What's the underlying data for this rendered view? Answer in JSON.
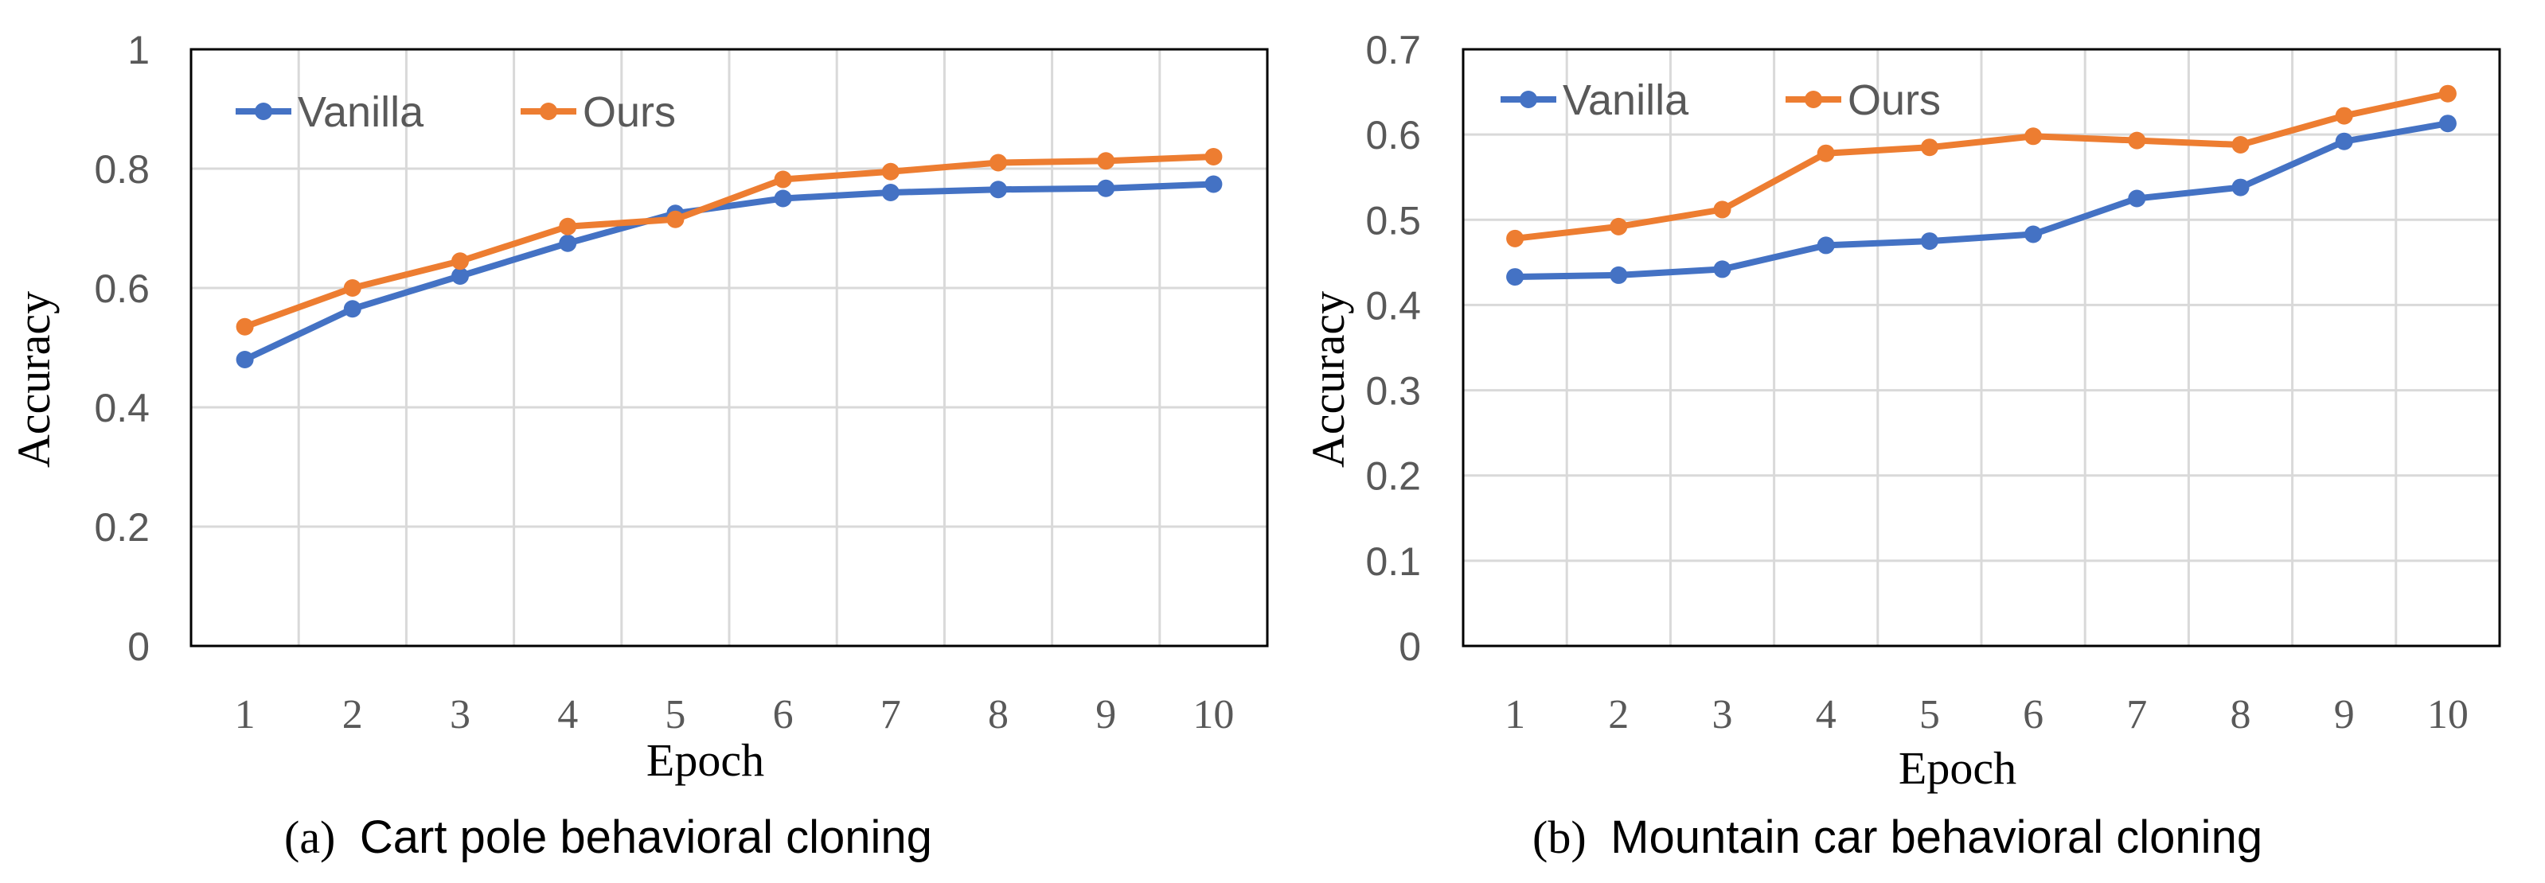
{
  "colors": {
    "vanilla": "#4472C4",
    "ours": "#ED7D31",
    "grid": "#D9D9D9",
    "frame": "#000000"
  },
  "chart_data": [
    {
      "type": "line",
      "panel_label": "(a)",
      "title": "Cart pole behavioral cloning",
      "xlabel": "Epoch",
      "ylabel": "Accuracy",
      "categories": [
        "1",
        "2",
        "3",
        "4",
        "5",
        "6",
        "7",
        "8",
        "9",
        "10"
      ],
      "ylim": [
        0,
        1
      ],
      "yticks": [
        "0",
        "0.2",
        "0.4",
        "0.6",
        "0.8",
        "1"
      ],
      "grid": true,
      "legend": "top-left",
      "series": [
        {
          "name": "Vanilla",
          "values": [
            0.48,
            0.565,
            0.62,
            0.675,
            0.725,
            0.75,
            0.76,
            0.765,
            0.767,
            0.774
          ]
        },
        {
          "name": "Ours",
          "values": [
            0.535,
            0.6,
            0.645,
            0.703,
            0.715,
            0.782,
            0.795,
            0.81,
            0.813,
            0.82
          ]
        }
      ]
    },
    {
      "type": "line",
      "panel_label": "(b)",
      "title": "Mountain car behavioral cloning",
      "xlabel": "Epoch",
      "ylabel": "Accuracy",
      "categories": [
        "1",
        "2",
        "3",
        "4",
        "5",
        "6",
        "7",
        "8",
        "9",
        "10"
      ],
      "ylim": [
        0,
        0.7
      ],
      "yticks": [
        "0",
        "0.1",
        "0.2",
        "0.3",
        "0.4",
        "0.5",
        "0.6",
        "0.7"
      ],
      "grid": true,
      "legend": "top-left",
      "series": [
        {
          "name": "Vanilla",
          "values": [
            0.433,
            0.435,
            0.442,
            0.47,
            0.475,
            0.483,
            0.525,
            0.538,
            0.592,
            0.613
          ]
        },
        {
          "name": "Ours",
          "values": [
            0.478,
            0.492,
            0.512,
            0.578,
            0.585,
            0.598,
            0.593,
            0.588,
            0.622,
            0.648
          ]
        }
      ]
    }
  ]
}
